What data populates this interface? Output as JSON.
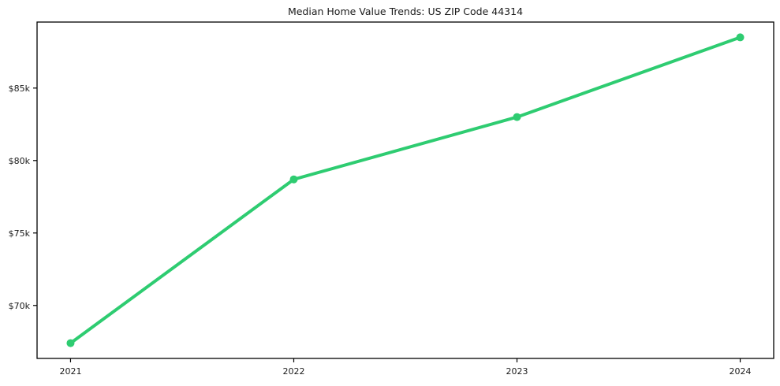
{
  "chart_data": {
    "type": "line",
    "title": "Median Home Value Trends: US ZIP Code 44314",
    "categories": [
      "2021",
      "2022",
      "2023",
      "2024"
    ],
    "values": [
      67400,
      78700,
      83000,
      88500
    ],
    "xlabel": "",
    "ylabel": "",
    "ylim": [
      66345,
      89555
    ],
    "y_ticks": [
      {
        "value": 70000,
        "label": "$70k"
      },
      {
        "value": 75000,
        "label": "$75k"
      },
      {
        "value": 80000,
        "label": "$80k"
      },
      {
        "value": 85000,
        "label": "$85k"
      }
    ],
    "grid": false,
    "legend": "none",
    "colors": {
      "line": "#2ecc71",
      "marker": "#2ecc71",
      "axis": "#000000",
      "background": "#ffffff",
      "text": "#1a1a1a"
    },
    "line_width": 4,
    "marker_radius": 5
  }
}
